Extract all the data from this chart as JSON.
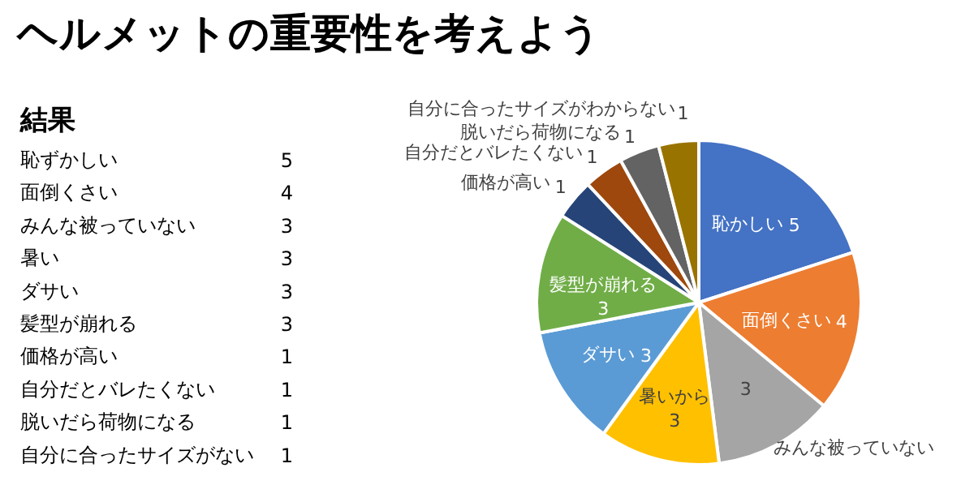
{
  "chart_data": [
    {
      "type": "other",
      "title": "結果",
      "annotations": [
        "恥ずかしい",
        "5",
        "面倒くさい",
        "4",
        "みんな被っていない",
        "3",
        "暑い",
        "3",
        "ダサい",
        "3",
        "髪型が崩れる",
        "3",
        "価格が高い",
        "1",
        "自分だとバレたくない",
        "1",
        "脱いだら荷物になる",
        "1",
        "自分に合ったサイズがない",
        "1"
      ]
    },
    {
      "type": "pie",
      "title": "ヘルメットの重要性を考えよう",
      "categories": [
        "恥かしい",
        "面倒くさい",
        "みんな被っていない",
        "暑いから",
        "ダサい",
        "髪型が崩れる",
        "価格が高い",
        "自分だとバレたくない",
        "脱いだら荷物になる",
        "自分に合ったサイズがわからない"
      ],
      "values": [
        5,
        4,
        3,
        3,
        3,
        3,
        1,
        1,
        1,
        1
      ],
      "colors": [
        "#4472c4",
        "#ed7d31",
        "#a5a5a5",
        "#ffc000",
        "#5b9bd5",
        "#70ad47",
        "#264478",
        "#9e480e",
        "#636363",
        "#997300"
      ],
      "data_labels": true
    }
  ]
}
